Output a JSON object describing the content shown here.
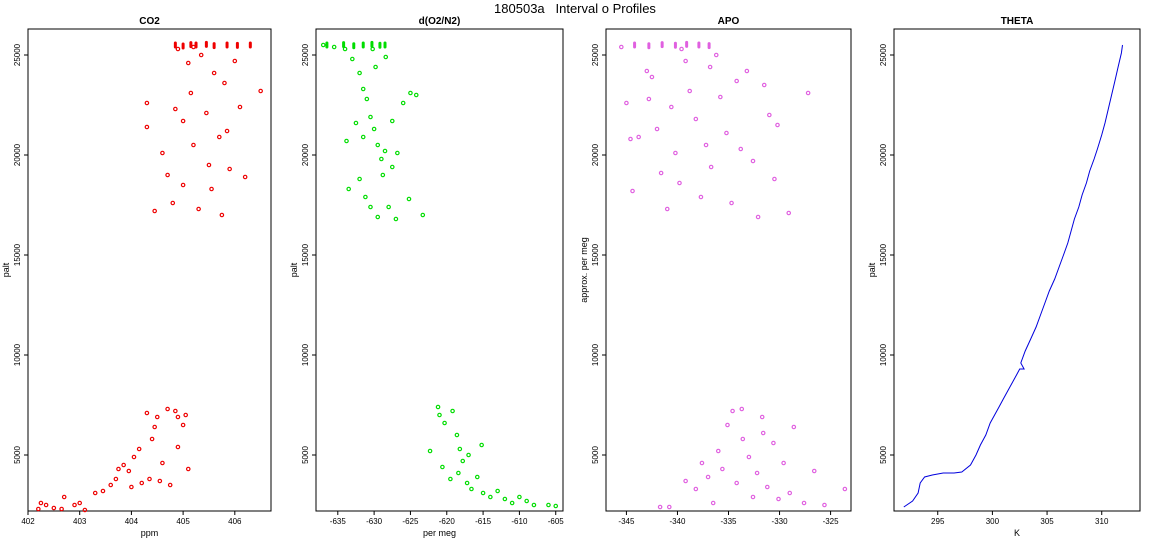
{
  "figure": {
    "title": "180503a   Interval o Profiles"
  },
  "chart_data": [
    {
      "type": "scatter",
      "title": "CO2",
      "xlabel": "ppm",
      "ylabel": "palt",
      "xlim": [
        402,
        406.7
      ],
      "ylim": [
        2200,
        26300
      ],
      "xticks": [
        "402",
        "403",
        "404",
        "405",
        "406"
      ],
      "yticks": [
        "5000",
        "10000",
        "15000",
        "20000",
        "25000"
      ],
      "color": "#ee0000",
      "marker": "open-circle",
      "points": [
        [
          402.2,
          2300
        ],
        [
          402.25,
          2600
        ],
        [
          402.35,
          2500
        ],
        [
          402.5,
          2350
        ],
        [
          402.65,
          2300
        ],
        [
          402.7,
          2900
        ],
        [
          402.9,
          2500
        ],
        [
          403.0,
          2600
        ],
        [
          403.1,
          2250
        ],
        [
          403.3,
          3100
        ],
        [
          403.45,
          3200
        ],
        [
          403.6,
          3500
        ],
        [
          403.7,
          3800
        ],
        [
          403.75,
          4300
        ],
        [
          403.85,
          4500
        ],
        [
          403.95,
          4200
        ],
        [
          404.05,
          4900
        ],
        [
          404.15,
          5300
        ],
        [
          404.2,
          3600
        ],
        [
          404.35,
          3800
        ],
        [
          404.4,
          5800
        ],
        [
          404.45,
          6400
        ],
        [
          404.5,
          6900
        ],
        [
          404.6,
          4600
        ],
        [
          404.7,
          7300
        ],
        [
          404.85,
          7200
        ],
        [
          404.9,
          6900
        ],
        [
          405.0,
          6500
        ],
        [
          405.1,
          4300
        ],
        [
          405.05,
          7000
        ],
        [
          404.3,
          7100
        ],
        [
          404.0,
          3400
        ],
        [
          404.55,
          3700
        ],
        [
          404.75,
          3500
        ],
        [
          404.9,
          5400
        ],
        [
          404.3,
          22600
        ],
        [
          404.3,
          21400
        ],
        [
          404.45,
          17200
        ],
        [
          404.6,
          20100
        ],
        [
          404.7,
          19000
        ],
        [
          404.8,
          17600
        ],
        [
          404.85,
          22300
        ],
        [
          405.0,
          21700
        ],
        [
          405.0,
          18500
        ],
        [
          405.1,
          24600
        ],
        [
          405.15,
          23100
        ],
        [
          405.2,
          20500
        ],
        [
          405.3,
          17300
        ],
        [
          405.35,
          25000
        ],
        [
          405.45,
          22100
        ],
        [
          405.5,
          19500
        ],
        [
          405.55,
          18300
        ],
        [
          405.6,
          24100
        ],
        [
          405.7,
          20900
        ],
        [
          405.75,
          17000
        ],
        [
          405.8,
          23600
        ],
        [
          405.85,
          21200
        ],
        [
          405.9,
          19300
        ],
        [
          406.0,
          24700
        ],
        [
          406.1,
          22400
        ],
        [
          406.2,
          18900
        ],
        [
          406.5,
          23200
        ],
        [
          404.9,
          25300
        ],
        [
          405.2,
          25400
        ]
      ],
      "segments": [
        [
          404.85,
          25500
        ],
        [
          405.0,
          25450
        ],
        [
          405.15,
          25520
        ],
        [
          405.25,
          25500
        ],
        [
          405.45,
          25530
        ],
        [
          405.6,
          25470
        ],
        [
          405.85,
          25500
        ],
        [
          406.05,
          25480
        ],
        [
          406.3,
          25500
        ]
      ]
    },
    {
      "type": "scatter",
      "title": "d(O2/N2)",
      "xlabel": "per meg",
      "ylabel": "palt",
      "xlim": [
        -638,
        -604
      ],
      "ylim": [
        2200,
        26300
      ],
      "xticks": [
        "-635",
        "-630",
        "-625",
        "-620",
        "-615",
        "-610",
        "-605"
      ],
      "yticks": [
        "5000",
        "10000",
        "15000",
        "20000",
        "25000"
      ],
      "color": "#00dd00",
      "marker": "open-circle",
      "points": [
        [
          -637,
          25500
        ],
        [
          -635.5,
          25400
        ],
        [
          -634,
          25300
        ],
        [
          -633,
          24800
        ],
        [
          -632,
          24100
        ],
        [
          -631.5,
          23300
        ],
        [
          -631,
          22800
        ],
        [
          -630.5,
          21900
        ],
        [
          -630,
          21300
        ],
        [
          -629.5,
          20500
        ],
        [
          -629,
          19800
        ],
        [
          -628.8,
          19000
        ],
        [
          -633.5,
          18300
        ],
        [
          -632,
          18800
        ],
        [
          -631.2,
          17900
        ],
        [
          -630.5,
          17400
        ],
        [
          -629.5,
          16900
        ],
        [
          -628,
          17400
        ],
        [
          -627,
          16800
        ],
        [
          -628.5,
          20200
        ],
        [
          -627.5,
          21700
        ],
        [
          -626,
          22600
        ],
        [
          -625,
          23100
        ],
        [
          -624.2,
          23000
        ],
        [
          -626.8,
          20100
        ],
        [
          -627.5,
          19400
        ],
        [
          -629.8,
          24400
        ],
        [
          -628.4,
          24900
        ],
        [
          -631.5,
          20900
        ],
        [
          -632.5,
          21600
        ],
        [
          -633.8,
          20700
        ],
        [
          -630.2,
          25300
        ],
        [
          -623.3,
          17000
        ],
        [
          -625.2,
          17800
        ],
        [
          -621.2,
          7400
        ],
        [
          -621,
          7000
        ],
        [
          -620.3,
          6600
        ],
        [
          -619.2,
          7200
        ],
        [
          -618.6,
          6000
        ],
        [
          -618.2,
          5300
        ],
        [
          -617.8,
          4700
        ],
        [
          -619.5,
          3800
        ],
        [
          -618.4,
          4100
        ],
        [
          -617.2,
          3600
        ],
        [
          -616.6,
          3300
        ],
        [
          -615.8,
          3900
        ],
        [
          -615,
          3100
        ],
        [
          -614,
          2900
        ],
        [
          -613,
          3200
        ],
        [
          -612,
          2800
        ],
        [
          -611,
          2600
        ],
        [
          -610,
          2900
        ],
        [
          -609,
          2700
        ],
        [
          -608,
          2500
        ],
        [
          -606,
          2500
        ],
        [
          -605,
          2450
        ],
        [
          -622.3,
          5200
        ],
        [
          -620.6,
          4400
        ],
        [
          -617,
          5000
        ],
        [
          -615.2,
          5500
        ]
      ],
      "segments": [
        [
          -636.5,
          25500
        ],
        [
          -634.2,
          25520
        ],
        [
          -632.8,
          25460
        ],
        [
          -631.5,
          25500
        ],
        [
          -630.3,
          25530
        ],
        [
          -629.2,
          25490
        ],
        [
          -628.5,
          25500
        ]
      ]
    },
    {
      "type": "scatter",
      "title": "APO",
      "xlabel": "",
      "ylabel": "approx. per meg",
      "xlim": [
        -347,
        -323
      ],
      "ylim": [
        2200,
        26300
      ],
      "xticks": [
        "-345",
        "-340",
        "-335",
        "-330",
        "-325"
      ],
      "yticks": [
        "5000",
        "10000",
        "15000",
        "20000",
        "25000"
      ],
      "color": "#e060e0",
      "marker": "open-circle",
      "points": [
        [
          -345.5,
          25400
        ],
        [
          -345,
          22600
        ],
        [
          -344.4,
          18200
        ],
        [
          -343.8,
          20900
        ],
        [
          -343,
          24200
        ],
        [
          -342.5,
          23900
        ],
        [
          -342,
          21300
        ],
        [
          -341.6,
          19100
        ],
        [
          -341,
          17300
        ],
        [
          -340.6,
          22400
        ],
        [
          -340.2,
          20100
        ],
        [
          -339.8,
          18600
        ],
        [
          -339.2,
          24700
        ],
        [
          -338.8,
          23200
        ],
        [
          -338.2,
          21800
        ],
        [
          -337.7,
          17900
        ],
        [
          -337.2,
          20500
        ],
        [
          -336.7,
          19400
        ],
        [
          -336.2,
          25000
        ],
        [
          -335.8,
          22900
        ],
        [
          -335.2,
          21100
        ],
        [
          -334.7,
          17600
        ],
        [
          -334.2,
          23700
        ],
        [
          -333.8,
          20300
        ],
        [
          -333.2,
          24200
        ],
        [
          -332.6,
          19700
        ],
        [
          -332.1,
          16900
        ],
        [
          -331.5,
          23500
        ],
        [
          -331,
          22000
        ],
        [
          -330.5,
          18800
        ],
        [
          -330.2,
          21500
        ],
        [
          -329.1,
          17100
        ],
        [
          -327.2,
          23100
        ],
        [
          -344.6,
          20800
        ],
        [
          -342.8,
          22800
        ],
        [
          -339.6,
          25300
        ],
        [
          -336.8,
          24400
        ],
        [
          -341.7,
          2400
        ],
        [
          -340.8,
          2400
        ],
        [
          -339.2,
          3700
        ],
        [
          -338.2,
          3300
        ],
        [
          -337.6,
          4600
        ],
        [
          -337,
          3900
        ],
        [
          -336.5,
          2600
        ],
        [
          -336,
          5200
        ],
        [
          -335.6,
          4300
        ],
        [
          -335.1,
          6500
        ],
        [
          -334.6,
          7200
        ],
        [
          -334.2,
          3600
        ],
        [
          -333.6,
          5800
        ],
        [
          -333,
          4900
        ],
        [
          -332.6,
          2900
        ],
        [
          -332.2,
          4100
        ],
        [
          -331.7,
          6900
        ],
        [
          -331.2,
          3400
        ],
        [
          -330.6,
          5600
        ],
        [
          -330.1,
          2800
        ],
        [
          -329.6,
          4600
        ],
        [
          -329,
          3100
        ],
        [
          -328.6,
          6400
        ],
        [
          -327.6,
          2600
        ],
        [
          -326.6,
          4200
        ],
        [
          -325.6,
          2500
        ],
        [
          -323.6,
          3300
        ],
        [
          -333.7,
          7300
        ],
        [
          -331.6,
          6100
        ]
      ],
      "segments": [
        [
          -344.2,
          25500
        ],
        [
          -342.8,
          25460
        ],
        [
          -341.5,
          25520
        ],
        [
          -340.2,
          25490
        ],
        [
          -339.1,
          25530
        ],
        [
          -337.9,
          25500
        ],
        [
          -336.9,
          25470
        ]
      ]
    },
    {
      "type": "line",
      "title": "THETA",
      "xlabel": "K",
      "ylabel": "palt",
      "xlim": [
        291,
        313.5
      ],
      "ylim": [
        2200,
        26300
      ],
      "xticks": [
        "295",
        "300",
        "305",
        "310"
      ],
      "yticks": [
        "5000",
        "10000",
        "15000",
        "20000",
        "25000"
      ],
      "color": "#0000dd",
      "x": [
        291.9,
        292.7,
        293.2,
        293.4,
        293.8,
        294.5,
        295.5,
        296.5,
        297.2,
        298,
        298.5,
        298.9,
        299.4,
        299.8,
        300.2,
        300.6,
        301,
        301.4,
        301.8,
        302.2,
        302.5,
        302.9,
        302.6,
        303,
        303.5,
        304,
        304.4,
        304.8,
        305.2,
        305.7,
        306.1,
        306.5,
        306.9,
        307.2,
        307.5,
        307.9,
        308.2,
        308.6,
        308.9,
        309.3,
        309.6,
        310,
        310.3,
        310.6,
        310.9,
        311.2,
        311.5,
        311.8,
        311.9
      ],
      "y": [
        2400,
        2700,
        3100,
        3600,
        3900,
        4000,
        4100,
        4100,
        4150,
        4500,
        5000,
        5500,
        6000,
        6600,
        7000,
        7400,
        7800,
        8200,
        8600,
        9000,
        9300,
        9300,
        9600,
        10200,
        10800,
        11400,
        12000,
        12600,
        13200,
        13800,
        14400,
        15000,
        15600,
        16200,
        16800,
        17400,
        18000,
        18600,
        19200,
        19800,
        20300,
        21000,
        21600,
        22300,
        23000,
        23700,
        24400,
        25100,
        25500
      ]
    }
  ]
}
